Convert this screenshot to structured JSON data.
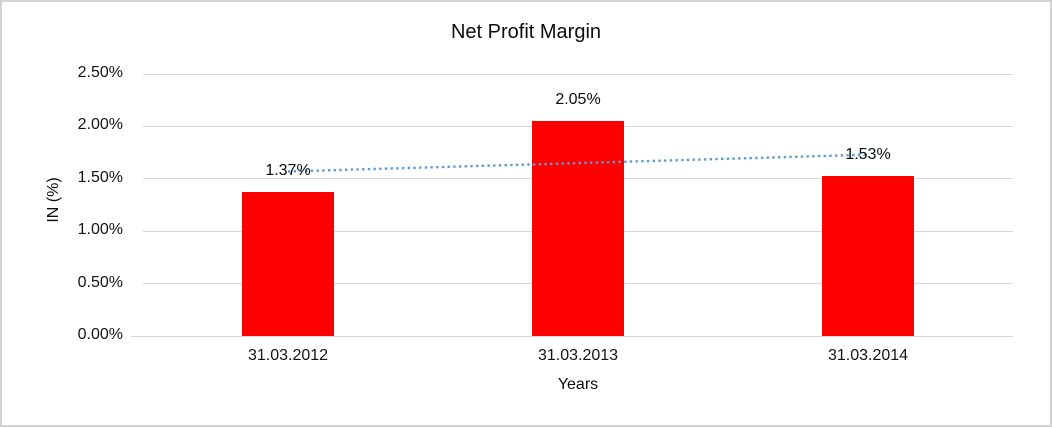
{
  "window": {
    "background_color": "#ffffff",
    "border_color": "#d2d2d2"
  },
  "chart_data": {
    "type": "bar",
    "title": "Net Profit Margin",
    "categories": [
      "31.03.2012",
      "31.03.2013",
      "31.03.2014"
    ],
    "values": [
      1.37,
      2.05,
      1.53
    ],
    "data_labels": [
      "1.37%",
      "2.05%",
      "1.53%"
    ],
    "xlabel": "Years",
    "ylabel": "IN (%)",
    "ylim": [
      0,
      2.5
    ],
    "ytick_step": 0.5,
    "yticks": [
      {
        "value": 0.0,
        "label": "0.00%"
      },
      {
        "value": 0.5,
        "label": "0.50%"
      },
      {
        "value": 1.0,
        "label": "1.00%"
      },
      {
        "value": 1.5,
        "label": "1.50%"
      },
      {
        "value": 2.0,
        "label": "2.00%"
      },
      {
        "value": 2.5,
        "label": "2.50%"
      }
    ],
    "grid": true,
    "legend": "none",
    "colors": {
      "bar": "#ff0000",
      "trendline": "#5b9bd5",
      "gridline": "#d9d9d9",
      "text": "#0d0d0d"
    },
    "trendline": {
      "type": "linear",
      "style": "dotted",
      "start_value": 1.57,
      "end_value": 1.73
    }
  }
}
